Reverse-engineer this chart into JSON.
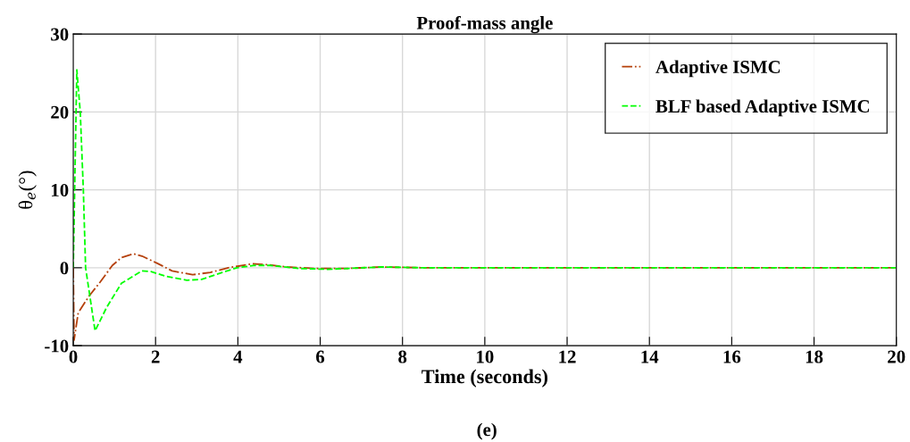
{
  "chart_data": {
    "type": "line",
    "title": "Proof-mass angle",
    "xlabel": "Time (seconds)",
    "ylabel": "θ$_{e}$(°)",
    "annotations": [
      "(e)"
    ],
    "xlim": [
      0,
      20
    ],
    "xticks": [
      0,
      2,
      4,
      6,
      8,
      10,
      12,
      14,
      16,
      18,
      20
    ],
    "ylim": [
      -10,
      30
    ],
    "yticks": [
      -10,
      0,
      10,
      20,
      30
    ],
    "grid": true,
    "legend": "top right",
    "series": [
      {
        "name": "Adaptive ISMC",
        "color": "#b5400a",
        "line_style": "dashdot",
        "x": [
          0,
          0.02,
          0.12,
          0.375,
          0.66,
          0.95,
          1.17,
          1.46,
          1.67,
          2.03,
          2.4,
          2.9,
          3.33,
          3.77,
          4.35,
          4.7,
          5.2,
          5.93,
          6.6,
          7.5,
          8.5,
          10,
          20
        ],
        "values": [
          0,
          -9.3,
          -5.8,
          -3.7,
          -1.8,
          0.3,
          1.3,
          1.8,
          1.5,
          0.6,
          -0.4,
          -0.9,
          -0.6,
          0,
          0.5,
          0.4,
          0.1,
          -0.1,
          -0.1,
          0.1,
          0,
          0,
          0
        ]
      },
      {
        "name": "BLF based Adaptive ISMC",
        "color": "#00ff00",
        "line_style": "dashed",
        "x": [
          0,
          0.087,
          0.17,
          0.245,
          0.3,
          0.53,
          0.81,
          1.17,
          1.67,
          1.89,
          2.25,
          2.76,
          3.12,
          3.62,
          3.98,
          4.42,
          4.78,
          5.5,
          6.2,
          7.5,
          8.5,
          10,
          20
        ],
        "values": [
          0,
          25.4,
          20,
          10,
          0,
          -8.1,
          -5.1,
          -2.0,
          -0.4,
          -0.5,
          -1.1,
          -1.6,
          -1.5,
          -0.6,
          0,
          0.3,
          0.3,
          -0.1,
          -0.2,
          0.1,
          0,
          0,
          0
        ]
      }
    ]
  }
}
